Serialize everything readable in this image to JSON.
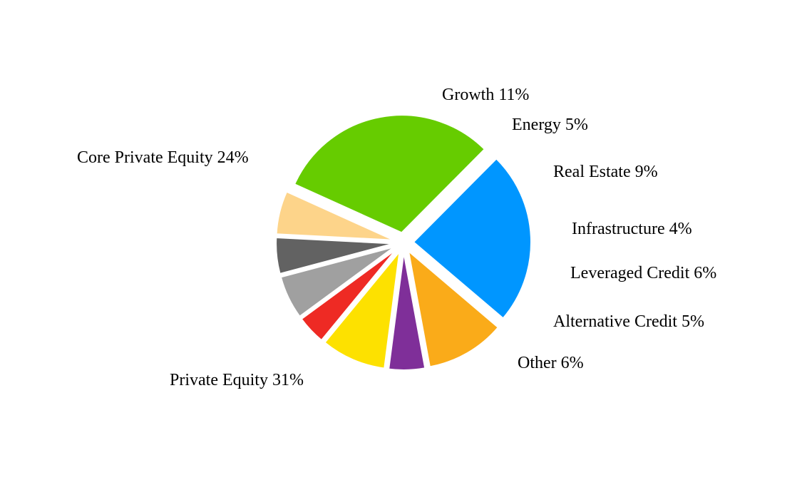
{
  "chart_data": {
    "type": "pie",
    "title": "",
    "legend": "none",
    "labels": [
      "Private Equity",
      "Core Private Equity",
      "Growth",
      "Energy",
      "Real Estate",
      "Infrastructure",
      "Leveraged Credit",
      "Alternative Credit",
      "Other"
    ],
    "values": [
      31,
      24,
      11,
      5,
      9,
      4,
      6,
      5,
      6
    ],
    "label_texts": [
      "Private Equity 31%",
      "Core Private Equity 24%",
      "Growth 11%",
      "Energy 5%",
      "Real Estate 9%",
      "Infrastructure 4%",
      "Leveraged Credit 6%",
      "Alternative Credit 5%",
      "Other 6%"
    ],
    "colors": [
      "#66cc00",
      "#0096ff",
      "#faab19",
      "#7f2f99",
      "#fde100",
      "#ee2a24",
      "#a0a0a0",
      "#626262",
      "#fdd48a"
    ],
    "exploded": [
      true,
      true,
      true,
      true,
      true,
      true,
      true,
      true,
      true
    ]
  }
}
